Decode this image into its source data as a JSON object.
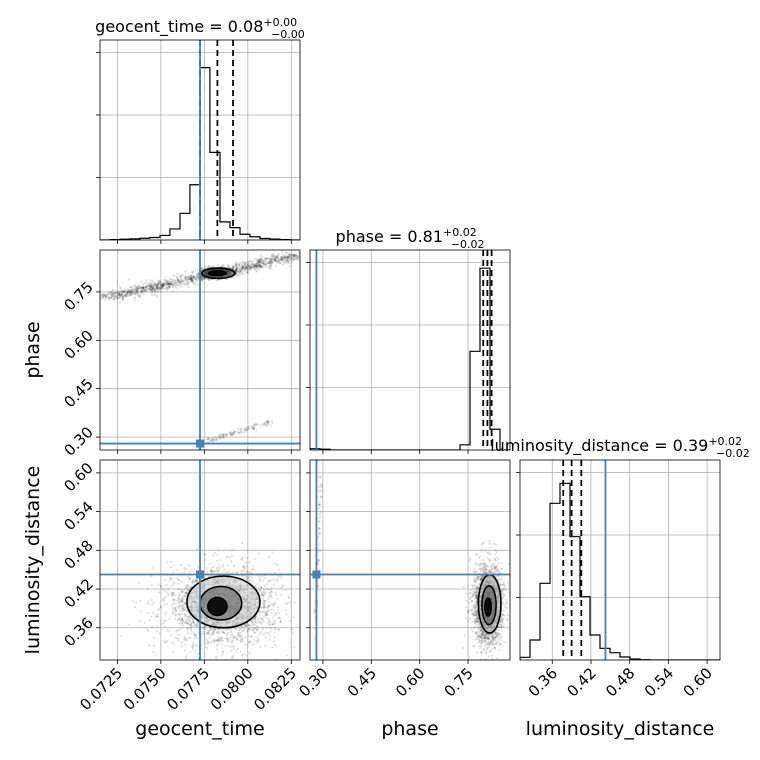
{
  "chart_data": {
    "type": "corner",
    "truth_color": "#4682b4",
    "parameters": [
      {
        "name": "geocent_time",
        "axis_label": "geocent_time",
        "title_main": "geocent_time = 0.08",
        "title_sup": "+0.00",
        "title_sub": "−0.00",
        "range": [
          0.0715,
          0.083
        ],
        "ticks": [
          0.0725,
          0.075,
          0.0775,
          0.08,
          0.0825
        ],
        "tick_labels": [
          "0.0725",
          "0.0750",
          "0.0775",
          "0.0800",
          "0.0825"
        ],
        "truth": 0.07725,
        "quantiles": [
          0.07725,
          0.07825,
          0.07915
        ],
        "hist_edges": [
          0.0715,
          0.07207,
          0.07265,
          0.07322,
          0.0738,
          0.07437,
          0.07495,
          0.07552,
          0.0761,
          0.07667,
          0.07725,
          0.07782,
          0.0784,
          0.07897,
          0.07955,
          0.08012,
          0.0807,
          0.08127,
          0.08185,
          0.08242,
          0.083
        ],
        "hist_counts": [
          0,
          2,
          4,
          6,
          9,
          13,
          24,
          58,
          140,
          290,
          905,
          460,
          95,
          65,
          30,
          17,
          8,
          5,
          2,
          0
        ],
        "hist_ymax": 1050
      },
      {
        "name": "phase",
        "axis_label": "phase",
        "title_main": "phase = 0.81",
        "title_sup": "+0.02",
        "title_sub": "−0.02",
        "range": [
          0.26,
          0.88
        ],
        "ticks": [
          0.3,
          0.45,
          0.6,
          0.75
        ],
        "tick_labels": [
          "0.30",
          "0.45",
          "0.60",
          "0.75"
        ],
        "truth": 0.28,
        "quantiles": [
          0.797,
          0.81,
          0.823
        ],
        "hist_edges": [
          0.26,
          0.291,
          0.322,
          0.353,
          0.384,
          0.415,
          0.446,
          0.477,
          0.508,
          0.539,
          0.57,
          0.601,
          0.632,
          0.663,
          0.694,
          0.725,
          0.756,
          0.787,
          0.818,
          0.849,
          0.88
        ],
        "hist_counts": [
          5,
          3,
          0,
          0,
          0,
          0,
          0,
          0,
          0,
          0,
          0,
          0,
          0,
          0,
          0,
          20,
          380,
          700,
          80,
          0
        ],
        "hist_ymax": 770
      },
      {
        "name": "luminosity_distance",
        "axis_label": "luminosity_distance",
        "title_main": "luminosity_distance = 0.39",
        "title_sup": "+0.02",
        "title_sub": "−0.02",
        "range": [
          0.31,
          0.62
        ],
        "ticks": [
          0.36,
          0.42,
          0.48,
          0.54,
          0.6
        ],
        "tick_labels": [
          "0.36",
          "0.42",
          "0.48",
          "0.54",
          "0.60"
        ],
        "truth": 0.4425,
        "quantiles": [
          0.377,
          0.39,
          0.405
        ],
        "hist_edges": [
          0.31,
          0.3255,
          0.341,
          0.3565,
          0.372,
          0.3875,
          0.403,
          0.4185,
          0.434,
          0.4495,
          0.465,
          0.4805,
          0.496,
          0.5115,
          0.527,
          0.5425,
          0.558,
          0.5735,
          0.589,
          0.6045,
          0.62
        ],
        "hist_counts": [
          8,
          60,
          230,
          470,
          530,
          370,
          190,
          75,
          35,
          22,
          9,
          3,
          1,
          0,
          0,
          0,
          0,
          0,
          0,
          0
        ],
        "hist_ymax": 600
      }
    ],
    "pairs": [
      {
        "x": "geocent_time",
        "y": "phase",
        "truth": [
          0.07725,
          0.28
        ],
        "branches": [
          {
            "from": [
              0.0717,
              0.73
            ],
            "to": [
              0.083,
              0.865
            ],
            "weight": 1300,
            "sx": 0.0018,
            "sy": 0.005
          },
          {
            "from": [
              0.0775,
              0.285
            ],
            "to": [
              0.0815,
              0.35
            ],
            "weight": 120,
            "sx": 0.00025,
            "sy": 0.004
          }
        ],
        "core": {
          "center": [
            0.07825,
            0.81
          ],
          "sx": 0.00045,
          "sy": 0.008,
          "weight": 900
        },
        "contours": [
          {
            "cx": 0.07825,
            "cy": 0.808,
            "rx": 0.0005,
            "ry": 0.007,
            "rot": 0
          },
          {
            "cx": 0.0783,
            "cy": 0.808,
            "rx": 0.00095,
            "ry": 0.016,
            "rot": 0
          }
        ]
      },
      {
        "x": "geocent_time",
        "y": "luminosity_distance",
        "truth": [
          0.07725,
          0.4425
        ],
        "core": {
          "center": [
            0.0785,
            0.392
          ],
          "sx": 0.0016,
          "sy": 0.03,
          "weight": 2200
        },
        "contours": [
          {
            "cx": 0.07825,
            "cy": 0.393,
            "rx": 0.00055,
            "ry": 0.014,
            "rot": 0
          },
          {
            "cx": 0.07845,
            "cy": 0.398,
            "rx": 0.0012,
            "ry": 0.026,
            "rot": 0
          },
          {
            "cx": 0.0786,
            "cy": 0.4,
            "rx": 0.0021,
            "ry": 0.04,
            "rot": 0
          }
        ]
      },
      {
        "x": "phase",
        "y": "luminosity_distance",
        "truth": [
          0.28,
          0.4425
        ],
        "branches": [
          {
            "from": [
              0.275,
              0.35
            ],
            "to": [
              0.295,
              0.6
            ],
            "weight": 90,
            "sx": 0.008,
            "sy": 0.02
          }
        ],
        "core": {
          "center": [
            0.812,
            0.395
          ],
          "sx": 0.022,
          "sy": 0.03,
          "weight": 2200
        },
        "contours": [
          {
            "cx": 0.812,
            "cy": 0.392,
            "rx": 0.01,
            "ry": 0.014,
            "rot": 0
          },
          {
            "cx": 0.815,
            "cy": 0.395,
            "rx": 0.022,
            "ry": 0.03,
            "rot": 0
          },
          {
            "cx": 0.817,
            "cy": 0.397,
            "rx": 0.035,
            "ry": 0.045,
            "rot": 0
          }
        ]
      }
    ]
  }
}
